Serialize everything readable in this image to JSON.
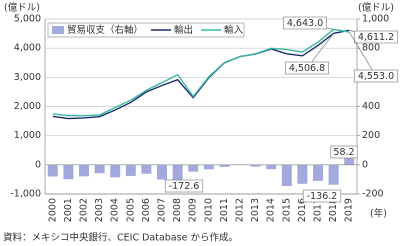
{
  "chart_data": {
    "type": "bar_line",
    "y_label": "(億ドル)",
    "y2_label": "(億ドル)",
    "x_label": "(年)",
    "source": "資料：メキシコ中央銀行、CEIC Database から作成。",
    "categories": [
      "2000",
      "2001",
      "2002",
      "2003",
      "2004",
      "2005",
      "2006",
      "2007",
      "2008",
      "2009",
      "2010",
      "2011",
      "2012",
      "2013",
      "2014",
      "2015",
      "2016",
      "2017",
      "2018",
      "2019"
    ],
    "series": [
      {
        "name": "貿易収支（右軸）",
        "type": "bar",
        "axis": "y2",
        "color": "#a3a9dc",
        "values": [
          -80,
          -99,
          -79,
          -57,
          -86,
          -76,
          -61,
          -101,
          -172.6,
          -47,
          -31,
          -14,
          0.2,
          -12,
          -30,
          -145,
          -130,
          -110,
          -136.2,
          58.2
        ],
        "value_labels": [
          null,
          null,
          null,
          null,
          null,
          null,
          null,
          null,
          "-172.6",
          null,
          null,
          null,
          null,
          null,
          null,
          null,
          null,
          null,
          "-136.2",
          "58.2"
        ]
      },
      {
        "name": "輸出",
        "type": "line",
        "color": "#1f2a6b",
        "values": [
          1660,
          1585,
          1610,
          1650,
          1880,
          2140,
          2500,
          2720,
          2920,
          2300,
          2985,
          3500,
          3710,
          3800,
          3970,
          3808,
          3740,
          4094,
          4506.8,
          4611.2
        ],
        "value_labels": [
          null,
          null,
          null,
          null,
          null,
          null,
          null,
          null,
          null,
          null,
          null,
          null,
          null,
          null,
          null,
          null,
          null,
          null,
          "4,506.8",
          "4,611.2"
        ]
      },
      {
        "name": "輸入",
        "type": "line",
        "color": "#3cb8a8",
        "values": [
          1745,
          1685,
          1685,
          1709,
          1967,
          2217,
          2560,
          2818,
          3095,
          2345,
          3016,
          3509,
          3709,
          3812,
          3997,
          3952,
          3870,
          4204,
          4643.0,
          4553.0
        ],
        "value_labels": [
          null,
          null,
          null,
          null,
          null,
          null,
          null,
          null,
          null,
          null,
          null,
          null,
          null,
          null,
          null,
          null,
          null,
          null,
          "4,643.0",
          "4,553.0"
        ]
      }
    ],
    "ylim": [
      -1000,
      5000
    ],
    "yticks": [
      {
        "value": -1000,
        "label": "-1,000"
      },
      0,
      {
        "value": 1000,
        "label": "1,000"
      },
      {
        "value": 2000,
        "label": "2,000"
      },
      {
        "value": 3000,
        "label": "3,000"
      },
      {
        "value": 4000,
        "label": "4,000"
      },
      {
        "value": 5000,
        "label": "5,000"
      }
    ],
    "y2lim": [
      -200,
      1000
    ],
    "y2ticks": [
      -200,
      0,
      200,
      400,
      600,
      800,
      {
        "value": 1000,
        "label": "1,000"
      }
    ],
    "grid": true,
    "legend": "top-left"
  }
}
